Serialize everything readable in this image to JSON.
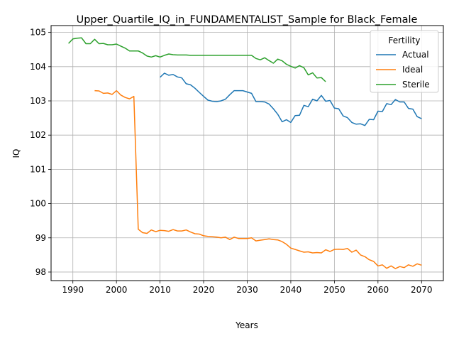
{
  "chart_data": {
    "type": "line",
    "title": "Upper_Quartile_IQ_in_FUNDAMENTALIST_Sample for Black_Female",
    "xlabel": "Years",
    "ylabel": "IQ",
    "xlim": [
      1985,
      2075
    ],
    "ylim": [
      97.75,
      105.2
    ],
    "xticks": [
      1990,
      2000,
      2010,
      2020,
      2030,
      2040,
      2050,
      2060,
      2070
    ],
    "yticks": [
      98,
      99,
      100,
      101,
      102,
      103,
      104,
      105
    ],
    "grid": true,
    "legend": {
      "title": "Fertility",
      "position": "top-right"
    },
    "series": [
      {
        "name": "Actual",
        "color": "#1f77b4",
        "x": [
          2010,
          2011,
          2012,
          2013,
          2014,
          2015,
          2016,
          2017,
          2018,
          2019,
          2020,
          2021,
          2022,
          2023,
          2024,
          2025,
          2026,
          2027,
          2028,
          2029,
          2030,
          2031,
          2032,
          2033,
          2034,
          2035,
          2036,
          2037,
          2038,
          2039,
          2040,
          2041,
          2042,
          2043,
          2044,
          2045,
          2046,
          2047,
          2048,
          2049,
          2050,
          2051,
          2052,
          2053,
          2054,
          2055,
          2056,
          2057,
          2058,
          2059,
          2060,
          2061,
          2062,
          2063,
          2064,
          2065,
          2066,
          2067,
          2068,
          2069,
          2070
        ],
        "y": [
          103.69,
          103.81,
          103.75,
          103.77,
          103.7,
          103.67,
          103.5,
          103.47,
          103.37,
          103.25,
          103.13,
          103.02,
          102.99,
          102.98,
          103.0,
          103.05,
          103.18,
          103.3,
          103.3,
          103.3,
          103.26,
          103.22,
          102.98,
          102.98,
          102.97,
          102.91,
          102.77,
          102.61,
          102.39,
          102.45,
          102.37,
          102.57,
          102.58,
          102.87,
          102.83,
          103.05,
          103.0,
          103.16,
          102.99,
          103.01,
          102.79,
          102.77,
          102.56,
          102.51,
          102.37,
          102.32,
          102.33,
          102.28,
          102.46,
          102.45,
          102.7,
          102.69,
          102.92,
          102.89,
          103.04,
          102.97,
          102.97,
          102.78,
          102.76,
          102.54,
          102.48
        ]
      },
      {
        "name": "Ideal",
        "color": "#ff7f0e",
        "x": [
          1995,
          1996,
          1997,
          1998,
          1999,
          2000,
          2001,
          2002,
          2003,
          2004,
          2005,
          2006,
          2007,
          2008,
          2009,
          2010,
          2011,
          2012,
          2013,
          2014,
          2015,
          2016,
          2017,
          2018,
          2019,
          2020,
          2021,
          2022,
          2023,
          2024,
          2025,
          2026,
          2027,
          2028,
          2029,
          2030,
          2031,
          2032,
          2033,
          2034,
          2035,
          2036,
          2037,
          2038,
          2039,
          2040,
          2041,
          2042,
          2043,
          2044,
          2045,
          2046,
          2047,
          2048,
          2049,
          2050,
          2051,
          2052,
          2053,
          2054,
          2055,
          2056,
          2057,
          2058,
          2059,
          2060,
          2061,
          2062,
          2063,
          2064,
          2065,
          2066,
          2067,
          2068,
          2069,
          2070
        ],
        "y": [
          103.3,
          103.29,
          103.22,
          103.23,
          103.19,
          103.3,
          103.17,
          103.1,
          103.06,
          103.13,
          99.25,
          99.15,
          99.13,
          99.23,
          99.18,
          99.22,
          99.21,
          99.19,
          99.24,
          99.2,
          99.2,
          99.23,
          99.17,
          99.12,
          99.11,
          99.06,
          99.04,
          99.03,
          99.02,
          99.0,
          99.02,
          98.95,
          99.02,
          98.98,
          98.98,
          98.98,
          99.0,
          98.91,
          98.93,
          98.95,
          98.97,
          98.95,
          98.94,
          98.89,
          98.81,
          98.7,
          98.66,
          98.62,
          98.58,
          98.59,
          98.56,
          98.57,
          98.56,
          98.65,
          98.6,
          98.66,
          98.67,
          98.66,
          98.69,
          98.58,
          98.64,
          98.5,
          98.45,
          98.36,
          98.31,
          98.18,
          98.21,
          98.11,
          98.18,
          98.1,
          98.16,
          98.13,
          98.21,
          98.17,
          98.24,
          98.2
        ]
      },
      {
        "name": "Sterile",
        "color": "#2ca02c",
        "x": [
          1989,
          1990,
          1991,
          1992,
          1993,
          1994,
          1995,
          1996,
          1997,
          1998,
          1999,
          2000,
          2001,
          2002,
          2003,
          2004,
          2005,
          2006,
          2007,
          2008,
          2009,
          2010,
          2011,
          2012,
          2013,
          2014,
          2015,
          2016,
          2017,
          2018,
          2019,
          2020,
          2021,
          2022,
          2023,
          2024,
          2025,
          2026,
          2027,
          2028,
          2029,
          2030,
          2031,
          2032,
          2033,
          2034,
          2035,
          2036,
          2037,
          2038,
          2039,
          2040,
          2041,
          2042,
          2043,
          2044,
          2045,
          2046,
          2047,
          2048
        ],
        "y": [
          104.68,
          104.81,
          104.83,
          104.84,
          104.67,
          104.67,
          104.8,
          104.67,
          104.68,
          104.64,
          104.64,
          104.66,
          104.6,
          104.54,
          104.46,
          104.46,
          104.46,
          104.4,
          104.31,
          104.28,
          104.32,
          104.28,
          104.33,
          104.37,
          104.35,
          104.34,
          104.34,
          104.34,
          104.33,
          104.33,
          104.33,
          104.33,
          104.33,
          104.33,
          104.33,
          104.33,
          104.33,
          104.33,
          104.33,
          104.33,
          104.33,
          104.33,
          104.33,
          104.24,
          104.2,
          104.26,
          104.18,
          104.1,
          104.22,
          104.17,
          104.07,
          104.01,
          103.96,
          104.03,
          103.97,
          103.76,
          103.82,
          103.67,
          103.68,
          103.56
        ]
      }
    ]
  }
}
